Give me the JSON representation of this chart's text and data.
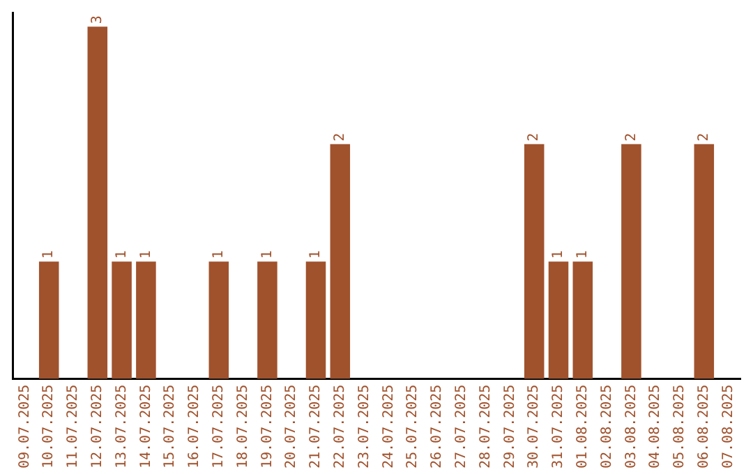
{
  "chart_data": {
    "type": "bar",
    "categories": [
      "09.07.2025",
      "10.07.2025",
      "11.07.2025",
      "12.07.2025",
      "13.07.2025",
      "14.07.2025",
      "15.07.2025",
      "16.07.2025",
      "17.07.2025",
      "18.07.2025",
      "19.07.2025",
      "20.07.2025",
      "21.07.2025",
      "22.07.2025",
      "23.07.2025",
      "24.07.2025",
      "25.07.2025",
      "26.07.2025",
      "27.07.2025",
      "28.07.2025",
      "29.07.2025",
      "30.07.2025",
      "31.07.2025",
      "01.08.2025",
      "02.08.2025",
      "03.08.2025",
      "04.08.2025",
      "05.08.2025",
      "06.08.2025",
      "07.08.2025"
    ],
    "values": [
      null,
      1,
      null,
      3,
      1,
      1,
      null,
      null,
      1,
      null,
      1,
      null,
      1,
      2,
      null,
      null,
      null,
      null,
      null,
      null,
      null,
      2,
      1,
      1,
      null,
      2,
      null,
      null,
      2,
      null
    ],
    "color": "#a0522d",
    "data_labels": true,
    "grid": false,
    "legend": false,
    "tick_labels": "x"
  }
}
